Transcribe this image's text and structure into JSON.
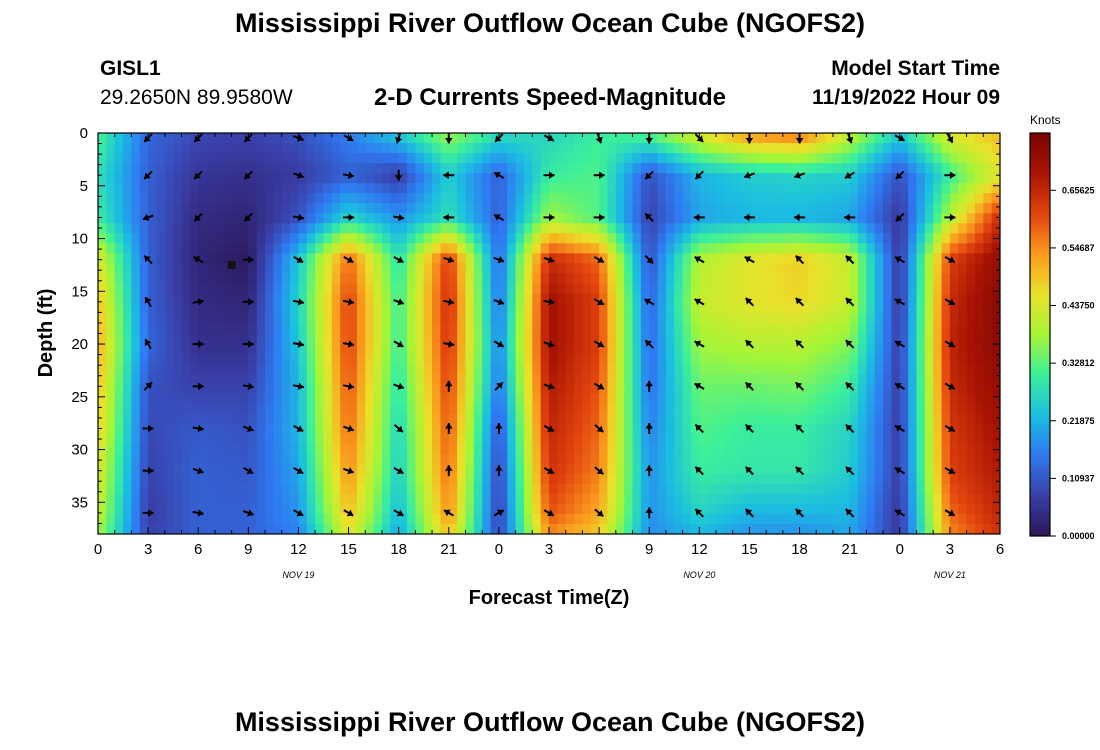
{
  "header": {
    "title": "Mississippi River Outflow Ocean Cube (NGOFS2)",
    "station_id": "GISL1",
    "coordinates": "29.2650N  89.9580W",
    "subtitle": "2-D Currents Speed-Magnitude",
    "model_start_label": "Model Start Time",
    "model_start_value": "11/19/2022 Hour 09"
  },
  "footer": {
    "title": "Mississippi River Outflow Ocean Cube (NGOFS2)"
  },
  "chart_data": {
    "type": "heatmap",
    "xlabel": "Forecast Time(Z)",
    "ylabel": "Depth (ft)",
    "x_range_hours": [
      0,
      54
    ],
    "ylim": [
      0,
      38
    ],
    "y_inverted": true,
    "x_ticks": [
      {
        "hour": 0,
        "label": "0"
      },
      {
        "hour": 3,
        "label": "3"
      },
      {
        "hour": 6,
        "label": "6"
      },
      {
        "hour": 9,
        "label": "9"
      },
      {
        "hour": 12,
        "label": "12"
      },
      {
        "hour": 15,
        "label": "15"
      },
      {
        "hour": 18,
        "label": "18"
      },
      {
        "hour": 21,
        "label": "21"
      },
      {
        "hour": 24,
        "label": "0"
      },
      {
        "hour": 27,
        "label": "3"
      },
      {
        "hour": 30,
        "label": "6"
      },
      {
        "hour": 33,
        "label": "9"
      },
      {
        "hour": 36,
        "label": "12"
      },
      {
        "hour": 39,
        "label": "15"
      },
      {
        "hour": 42,
        "label": "18"
      },
      {
        "hour": 45,
        "label": "21"
      },
      {
        "hour": 48,
        "label": "0"
      },
      {
        "hour": 51,
        "label": "3"
      },
      {
        "hour": 54,
        "label": "6"
      }
    ],
    "date_labels": [
      {
        "hour": 12,
        "label": "NOV 19"
      },
      {
        "hour": 36,
        "label": "NOV 20"
      },
      {
        "hour": 51,
        "label": "NOV 21"
      }
    ],
    "y_ticks": [
      0,
      5,
      10,
      15,
      20,
      25,
      30,
      35
    ],
    "colorbar": {
      "title": "Knots",
      "min": 0.0,
      "max": 0.765,
      "tick_labels": [
        "0.00000",
        "0.10937",
        "0.21875",
        "0.32812",
        "0.43750",
        "0.54687",
        "0.65625"
      ],
      "tick_values": [
        0.0,
        0.10937,
        0.21875,
        0.32812,
        0.4375,
        0.54687,
        0.65625
      ]
    },
    "colorscale": [
      "#2b1556",
      "#3a3fa8",
      "#2f7af2",
      "#1bbfe0",
      "#3cf09a",
      "#a6f536",
      "#e9e22a",
      "#fb9a1e",
      "#e2430e",
      "#a81403",
      "#7a0402"
    ],
    "hour_columns": [
      0,
      3,
      6,
      9,
      12,
      15,
      18,
      21,
      24,
      27,
      30,
      33,
      36,
      39,
      42,
      45,
      48,
      51,
      54
    ],
    "depth_rows": [
      0,
      4,
      8,
      12,
      16,
      20,
      24,
      28,
      32,
      36,
      38
    ],
    "speed_knots": [
      [
        0.32,
        0.13,
        0.09,
        0.08,
        0.1,
        0.16,
        0.25,
        0.38,
        0.28,
        0.26,
        0.3,
        0.33,
        0.45,
        0.55,
        0.58,
        0.42,
        0.25,
        0.45,
        0.5
      ],
      [
        0.28,
        0.12,
        0.06,
        0.05,
        0.07,
        0.12,
        0.07,
        0.25,
        0.12,
        0.3,
        0.32,
        0.1,
        0.22,
        0.25,
        0.26,
        0.25,
        0.1,
        0.3,
        0.45
      ],
      [
        0.3,
        0.12,
        0.04,
        0.03,
        0.1,
        0.26,
        0.18,
        0.28,
        0.12,
        0.38,
        0.32,
        0.08,
        0.2,
        0.22,
        0.22,
        0.2,
        0.06,
        0.4,
        0.65
      ],
      [
        0.45,
        0.12,
        0.03,
        0.01,
        0.24,
        0.58,
        0.28,
        0.63,
        0.13,
        0.65,
        0.58,
        0.1,
        0.4,
        0.45,
        0.48,
        0.42,
        0.06,
        0.62,
        0.72
      ],
      [
        0.5,
        0.12,
        0.04,
        0.03,
        0.26,
        0.62,
        0.3,
        0.65,
        0.14,
        0.7,
        0.62,
        0.12,
        0.42,
        0.45,
        0.47,
        0.42,
        0.06,
        0.65,
        0.74
      ],
      [
        0.52,
        0.13,
        0.05,
        0.05,
        0.24,
        0.62,
        0.3,
        0.64,
        0.16,
        0.7,
        0.62,
        0.13,
        0.38,
        0.4,
        0.4,
        0.36,
        0.07,
        0.66,
        0.74
      ],
      [
        0.5,
        0.1,
        0.08,
        0.08,
        0.22,
        0.6,
        0.28,
        0.62,
        0.14,
        0.68,
        0.6,
        0.14,
        0.34,
        0.34,
        0.35,
        0.3,
        0.07,
        0.65,
        0.72
      ],
      [
        0.48,
        0.09,
        0.11,
        0.1,
        0.22,
        0.58,
        0.26,
        0.6,
        0.1,
        0.66,
        0.58,
        0.16,
        0.32,
        0.3,
        0.3,
        0.26,
        0.07,
        0.63,
        0.7
      ],
      [
        0.45,
        0.08,
        0.12,
        0.11,
        0.2,
        0.55,
        0.25,
        0.58,
        0.08,
        0.64,
        0.56,
        0.18,
        0.3,
        0.29,
        0.29,
        0.25,
        0.07,
        0.62,
        0.68
      ],
      [
        0.42,
        0.07,
        0.12,
        0.12,
        0.18,
        0.5,
        0.22,
        0.55,
        0.07,
        0.6,
        0.52,
        0.18,
        0.26,
        0.22,
        0.22,
        0.22,
        0.06,
        0.58,
        0.66
      ],
      [
        0.38,
        0.08,
        0.12,
        0.12,
        0.16,
        0.45,
        0.2,
        0.5,
        0.08,
        0.55,
        0.48,
        0.17,
        0.22,
        0.18,
        0.18,
        0.2,
        0.06,
        0.55,
        0.64
      ]
    ],
    "vectors": {
      "hours": [
        3,
        6,
        9,
        12,
        15,
        18,
        21,
        24,
        27,
        30,
        33,
        36,
        39,
        42,
        45,
        48,
        51
      ],
      "depths": [
        0,
        4,
        8,
        12,
        16,
        20,
        24,
        28,
        32,
        36
      ],
      "direction_deg_to": [
        [
          225,
          225,
          225,
          110,
          120,
          200,
          180,
          225,
          120,
          160,
          180,
          135,
          180,
          180,
          160,
          120,
          150
        ],
        [
          225,
          225,
          225,
          110,
          100,
          180,
          270,
          300,
          90,
          90,
          225,
          225,
          250,
          250,
          240,
          225,
          90
        ],
        [
          250,
          225,
          225,
          100,
          90,
          100,
          270,
          300,
          90,
          90,
          315,
          270,
          270,
          270,
          270,
          225,
          90
        ],
        [
          315,
          300,
          90,
          120,
          120,
          120,
          110,
          110,
          110,
          120,
          135,
          300,
          300,
          315,
          315,
          300,
          120
        ],
        [
          330,
          80,
          90,
          100,
          100,
          110,
          100,
          110,
          100,
          120,
          300,
          300,
          315,
          315,
          315,
          300,
          120
        ],
        [
          330,
          90,
          90,
          100,
          100,
          120,
          100,
          120,
          110,
          120,
          315,
          300,
          315,
          315,
          315,
          300,
          120
        ],
        [
          45,
          90,
          100,
          100,
          100,
          110,
          0,
          45,
          110,
          120,
          0,
          300,
          315,
          315,
          315,
          300,
          120
        ],
        [
          90,
          100,
          110,
          120,
          110,
          130,
          0,
          0,
          120,
          130,
          0,
          315,
          315,
          315,
          315,
          300,
          120
        ],
        [
          90,
          110,
          120,
          120,
          110,
          120,
          0,
          0,
          120,
          130,
          0,
          315,
          315,
          315,
          315,
          300,
          120
        ],
        [
          90,
          100,
          110,
          120,
          120,
          120,
          300,
          60,
          120,
          130,
          0,
          315,
          315,
          315,
          315,
          300,
          120
        ]
      ]
    },
    "marker": {
      "hour": 8,
      "depth": 12.5,
      "symbol": "square"
    }
  }
}
